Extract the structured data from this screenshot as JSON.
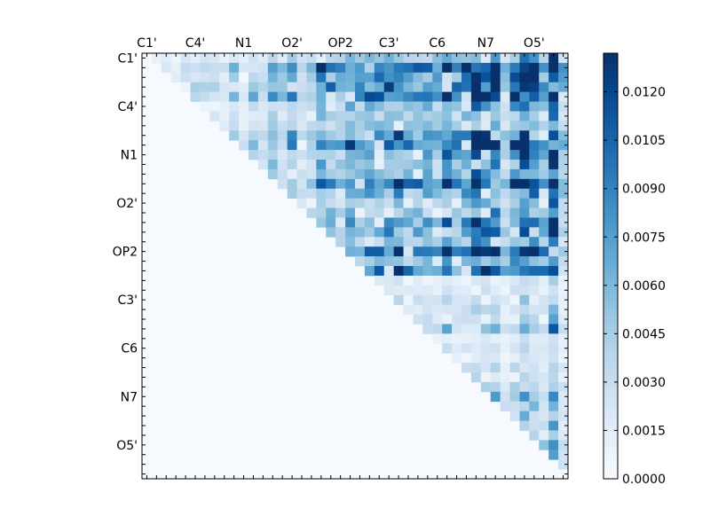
{
  "chart_data": {
    "type": "heatmap",
    "title": "",
    "xlabel": "",
    "ylabel": "",
    "n": 44,
    "labels": [
      "C1'",
      "C4'",
      "N1",
      "O2'",
      "OP2",
      "C3'",
      "C6",
      "N7",
      "O5'"
    ],
    "label_positions": [
      0.5,
      5.5,
      10.5,
      15.5,
      20.5,
      25.5,
      30.5,
      35.5,
      40.5
    ],
    "x_ticks_top": true,
    "colorbar": {
      "min": 0.0,
      "max": 0.0132,
      "ticks": [
        "0.0000",
        "0.0015",
        "0.0030",
        "0.0045",
        "0.0060",
        "0.0075",
        "0.0090",
        "0.0105",
        "0.0120"
      ],
      "tick_values": [
        0.0,
        0.0015,
        0.003,
        0.0045,
        0.006,
        0.0075,
        0.009,
        0.0105,
        0.012
      ]
    },
    "colormap": "Blues",
    "matrix": "upper-triangular",
    "colors": {
      "low": "#f7fbff",
      "high": "#08306b",
      "frame": "#000000"
    }
  }
}
